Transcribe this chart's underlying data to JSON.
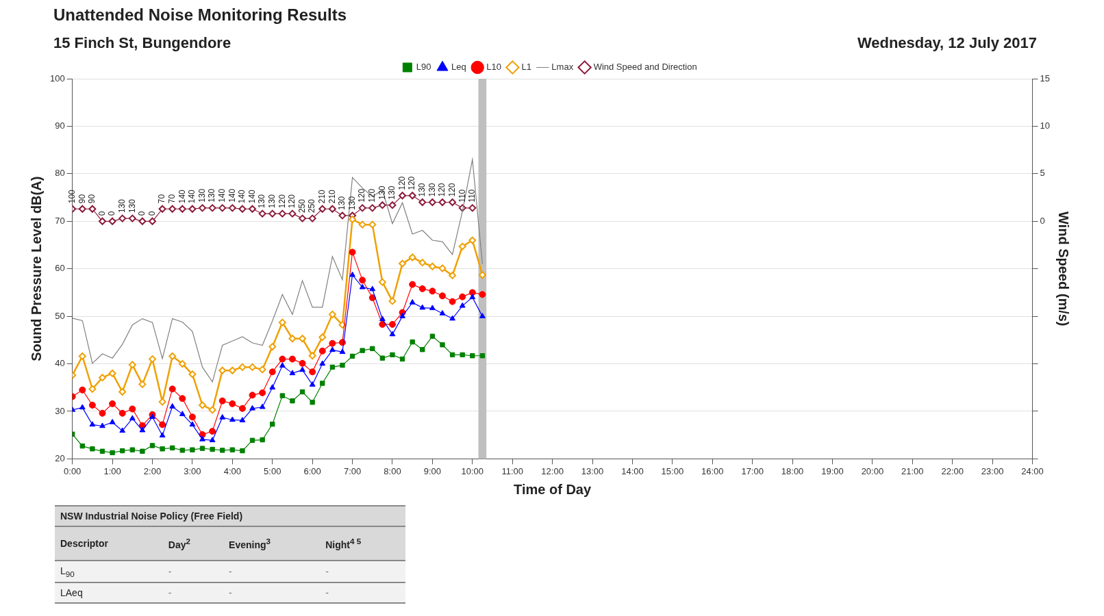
{
  "chart_data": [
    {
      "type": "line",
      "title": "Unattended Noise Monitoring Results",
      "subtitle": "15 Finch St, Bungendore",
      "annotations": [
        "Wednesday, 12 July 2017",
        {
          "text": "100",
          "x": 0,
          "y": 72.6
        },
        {
          "text": "90",
          "x": 0.25,
          "y": 72.6
        },
        {
          "text": "90",
          "x": 0.5,
          "y": 72.6
        },
        {
          "text": "0",
          "x": 0.75,
          "y": 70
        },
        {
          "text": "0",
          "x": 1,
          "y": 70
        },
        {
          "text": "130",
          "x": 1.25,
          "y": 70.6
        },
        {
          "text": "130",
          "x": 1.5,
          "y": 70.6
        },
        {
          "text": "0",
          "x": 1.75,
          "y": 70
        },
        {
          "text": "0",
          "x": 2,
          "y": 70
        },
        {
          "text": "70",
          "x": 2.25,
          "y": 72.6
        },
        {
          "text": "70",
          "x": 2.5,
          "y": 72.6
        },
        {
          "text": "140",
          "x": 2.75,
          "y": 72.6
        },
        {
          "text": "140",
          "x": 3,
          "y": 72.6
        },
        {
          "text": "130",
          "x": 3.25,
          "y": 72.8
        },
        {
          "text": "130",
          "x": 3.5,
          "y": 72.8
        },
        {
          "text": "140",
          "x": 3.75,
          "y": 72.8
        },
        {
          "text": "140",
          "x": 4,
          "y": 72.8
        },
        {
          "text": "140",
          "x": 4.25,
          "y": 72.6
        },
        {
          "text": "140",
          "x": 4.5,
          "y": 72.6
        },
        {
          "text": "130",
          "x": 4.75,
          "y": 71.6
        },
        {
          "text": "130",
          "x": 5,
          "y": 71.6
        },
        {
          "text": "120",
          "x": 5.25,
          "y": 71.6
        },
        {
          "text": "120",
          "x": 5.5,
          "y": 71.6
        },
        {
          "text": "250",
          "x": 5.75,
          "y": 70.6
        },
        {
          "text": "250",
          "x": 6,
          "y": 70.6
        },
        {
          "text": "210",
          "x": 6.25,
          "y": 72.6
        },
        {
          "text": "210",
          "x": 6.5,
          "y": 72.6
        },
        {
          "text": "130",
          "x": 6.75,
          "y": 71.2
        },
        {
          "text": "130",
          "x": 7,
          "y": 71.2
        },
        {
          "text": "120",
          "x": 7.25,
          "y": 72.8
        },
        {
          "text": "120",
          "x": 7.5,
          "y": 72.8
        },
        {
          "text": "130",
          "x": 7.75,
          "y": 73.4
        },
        {
          "text": "130",
          "x": 8,
          "y": 73.4
        },
        {
          "text": "120",
          "x": 8.25,
          "y": 75.4
        },
        {
          "text": "120",
          "x": 8.5,
          "y": 75.4
        },
        {
          "text": "130",
          "x": 8.75,
          "y": 74
        },
        {
          "text": "130",
          "x": 9,
          "y": 74
        },
        {
          "text": "120",
          "x": 9.25,
          "y": 74
        },
        {
          "text": "120",
          "x": 9.5,
          "y": 74
        },
        {
          "text": "110",
          "x": 9.75,
          "y": 72.8
        },
        {
          "text": "110",
          "x": 10,
          "y": 72.8
        }
      ],
      "xlabel": "Time of Day",
      "ylabel": "Sound Pressure Level dB(A)",
      "y2label": "Wind Speed (m/s)",
      "x": [
        0,
        0.25,
        0.5,
        0.75,
        1,
        1.25,
        1.5,
        1.75,
        2,
        2.25,
        2.5,
        2.75,
        3,
        3.25,
        3.5,
        3.75,
        4,
        4.25,
        4.5,
        4.75,
        5,
        5.25,
        5.5,
        5.75,
        6,
        6.25,
        6.5,
        6.75,
        7,
        7.25,
        7.5,
        7.75,
        8,
        8.25,
        8.5,
        8.75,
        9,
        9.25,
        9.5,
        9.75,
        10,
        10.25
      ],
      "series": [
        {
          "name": "L90",
          "color": "#008000",
          "marker": "square",
          "values": [
            25.2,
            22.7,
            22.1,
            21.6,
            21.3,
            21.7,
            21.9,
            21.6,
            22.8,
            22.1,
            22.3,
            21.8,
            21.9,
            22.2,
            22.0,
            21.8,
            21.9,
            21.7,
            23.9,
            24.0,
            27.3,
            33.3,
            32.2,
            34.1,
            31.9,
            35.9,
            39.3,
            39.7,
            41.6,
            42.8,
            43.2,
            41.2,
            41.9,
            41.0,
            44.6,
            43.0,
            45.8,
            44.0,
            41.9,
            41.9,
            41.7,
            41.7
          ]
        },
        {
          "name": "Leq",
          "color": "#0000ff",
          "marker": "triangle",
          "values": [
            30.3,
            30.8,
            27.2,
            26.9,
            27.7,
            25.9,
            28.5,
            26.0,
            28.8,
            24.9,
            31.0,
            29.4,
            27.2,
            24.1,
            23.9,
            28.7,
            28.2,
            28.1,
            30.6,
            30.9,
            35.0,
            39.6,
            38.0,
            38.7,
            35.6,
            40.0,
            42.9,
            42.5,
            58.7,
            56.1,
            55.7,
            49.4,
            46.2,
            50.0,
            52.9,
            51.8,
            51.7,
            50.6,
            49.5,
            52.2,
            54.0,
            50.0
          ]
        },
        {
          "name": "L10",
          "color": "#ff0000",
          "marker": "circle",
          "values": [
            33.1,
            34.5,
            31.3,
            29.6,
            31.6,
            29.6,
            30.5,
            27.0,
            29.3,
            27.2,
            34.7,
            32.7,
            28.8,
            25.1,
            25.8,
            32.2,
            31.6,
            30.6,
            33.4,
            33.9,
            38.3,
            41.0,
            41.0,
            40.1,
            38.3,
            42.7,
            44.3,
            44.5,
            63.5,
            57.6,
            53.9,
            48.3,
            48.3,
            50.8,
            56.7,
            55.8,
            55.3,
            54.3,
            53.1,
            54.1,
            55.0,
            54.6
          ]
        },
        {
          "name": "L1",
          "color": "#f0a000",
          "marker": "diamond",
          "values": [
            37.6,
            41.6,
            34.7,
            37.1,
            38.0,
            34.1,
            39.8,
            35.7,
            41.0,
            32.0,
            41.6,
            40.0,
            37.8,
            31.3,
            30.3,
            38.6,
            38.6,
            39.3,
            39.3,
            38.8,
            43.6,
            48.7,
            45.3,
            45.3,
            41.7,
            45.6,
            50.4,
            48.2,
            70.4,
            69.3,
            69.3,
            57.2,
            53.2,
            61.1,
            62.4,
            61.3,
            60.5,
            60.1,
            58.6,
            64.7,
            66.0,
            58.7
          ]
        },
        {
          "name": "Lmax",
          "color": "#808080",
          "marker": "none",
          "values": [
            49.6,
            49.1,
            40.1,
            42.1,
            41.2,
            44.1,
            48.2,
            49.5,
            48.7,
            41.1,
            49.5,
            48.8,
            46.8,
            39.3,
            36.2,
            43.9,
            44.8,
            45.7,
            44.4,
            43.9,
            49.0,
            54.6,
            50.4,
            57.5,
            51.9,
            51.9,
            62.6,
            57.7,
            79.2,
            77.0,
            75.2,
            76.6,
            69.5,
            73.9,
            67.3,
            68.1,
            66.0,
            65.7,
            63.0,
            72.1,
            83.0,
            61.0
          ]
        },
        {
          "name": "Wind Speed and Direction",
          "color": "#8b1a3a",
          "marker": "diamond",
          "axis": "y2",
          "values": [
            1.3,
            1.3,
            1.3,
            0,
            0,
            0.3,
            0.3,
            0,
            0,
            1.3,
            1.3,
            1.3,
            1.3,
            1.4,
            1.4,
            1.4,
            1.4,
            1.3,
            1.3,
            0.8,
            0.8,
            0.8,
            0.8,
            0.3,
            0.3,
            1.3,
            1.3,
            0.6,
            0.6,
            1.4,
            1.4,
            1.7,
            1.7,
            2.7,
            2.7,
            2.0,
            2.0,
            2.0,
            2.0,
            1.4,
            1.4,
            null
          ]
        }
      ],
      "bands": [
        {
          "axis": "x",
          "from": 10.15,
          "to": 10.35,
          "color": "#bfbfbf"
        }
      ],
      "xlim": [
        0,
        24
      ],
      "xticks": [
        {
          "value": 0,
          "label": "0:00"
        },
        {
          "value": 1,
          "label": "1:00"
        },
        {
          "value": 2,
          "label": "2:00"
        },
        {
          "value": 3,
          "label": "3:00"
        },
        {
          "value": 4,
          "label": "4:00"
        },
        {
          "value": 5,
          "label": "5:00"
        },
        {
          "value": 6,
          "label": "6:00"
        },
        {
          "value": 7,
          "label": "7:00"
        },
        {
          "value": 8,
          "label": "8:00"
        },
        {
          "value": 9,
          "label": "9:00"
        },
        {
          "value": 10,
          "label": "10:00"
        },
        {
          "value": 11,
          "label": "11:00"
        },
        {
          "value": 12,
          "label": "12:00"
        },
        {
          "value": 13,
          "label": "13:00"
        },
        {
          "value": 14,
          "label": "14:00"
        },
        {
          "value": 15,
          "label": "15:00"
        },
        {
          "value": 16,
          "label": "16:00"
        },
        {
          "value": 17,
          "label": "17:00"
        },
        {
          "value": 18,
          "label": "18:00"
        },
        {
          "value": 19,
          "label": "19:00"
        },
        {
          "value": 20,
          "label": "20:00"
        },
        {
          "value": 21,
          "label": "21:00"
        },
        {
          "value": 22,
          "label": "22:00"
        },
        {
          "value": 23,
          "label": "23:00"
        },
        {
          "value": 24,
          "label": "24:00"
        }
      ],
      "ylim": [
        20,
        100
      ],
      "yticks": [
        20,
        30,
        40,
        50,
        60,
        70,
        80,
        90,
        100
      ],
      "y2lim": [
        -25,
        15
      ],
      "y2ticks": [
        {
          "value": -25,
          "label": null
        },
        {
          "value": -20,
          "label": null
        },
        {
          "value": -15,
          "label": null
        },
        {
          "value": -10,
          "label": null
        },
        {
          "value": -5,
          "label": null
        },
        0,
        5,
        10,
        15
      ],
      "grid": "y",
      "legend": "top"
    },
    {
      "type": "other",
      "title": "NSW Industrial Noise Policy (Free Field)",
      "categories": [
        "Descriptor",
        "Day$^{2}$",
        "Evening$^{3}$",
        "Night$^{4 5}$"
      ],
      "y_categories": [
        "L$_{90}$",
        "LAeq"
      ],
      "cell_labels": [
        [
          "-",
          "-",
          "-"
        ],
        [
          "-",
          "-",
          "-"
        ]
      ]
    }
  ]
}
